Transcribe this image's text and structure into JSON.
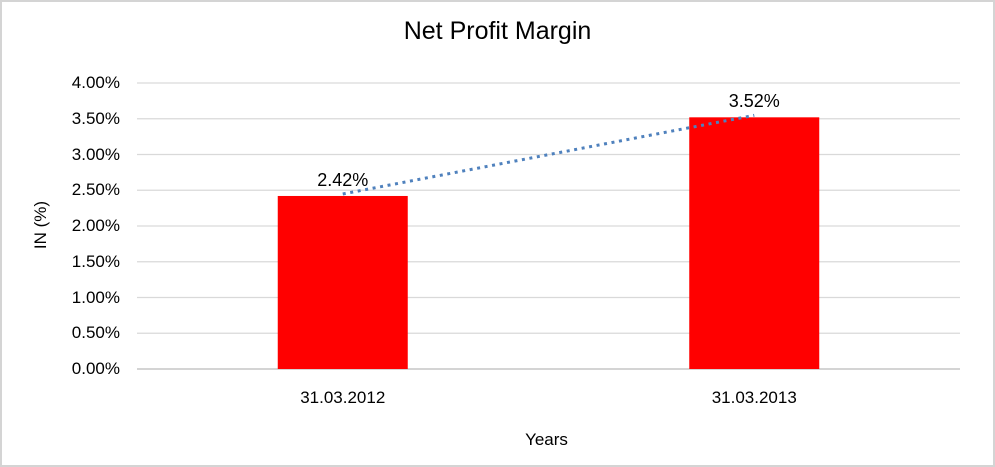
{
  "chart_data": {
    "type": "bar",
    "title": "Net Profit Margin",
    "xlabel": "Years",
    "ylabel": "IN (%)",
    "categories": [
      "31.03.2012",
      "31.03.2013"
    ],
    "values": [
      2.42,
      3.52
    ],
    "data_labels": [
      "2.42%",
      "3.52%"
    ],
    "ylim": [
      0,
      4
    ],
    "ytick_labels": [
      "0.00%",
      "0.50%",
      "1.00%",
      "1.50%",
      "2.00%",
      "2.50%",
      "3.00%",
      "3.50%",
      "4.00%"
    ],
    "grid": true,
    "legend": "none",
    "bar_color": "#ff0000",
    "trendline_color": "#4f81bd",
    "gridline_color": "#d9d9d9",
    "axisline_color": "#c6c6c6",
    "trendline_style": "dotted"
  }
}
